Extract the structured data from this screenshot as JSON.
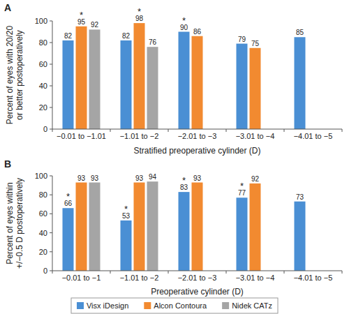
{
  "chart_data": [
    {
      "type": "bar",
      "title": "A",
      "x_label": "Stratified preoperative cylinder (D)",
      "y_label": "Percent of eyes with 20/20 or better postoperatively",
      "categories": [
        "−0.01 to −1.01",
        "−1.01 to −2",
        "−2.01 to −3",
        "−3.01 to −4",
        "−4.01 to −5"
      ],
      "series": [
        {
          "name": "Visx iDesign",
          "color": "#4a8fd4",
          "values": [
            82,
            82,
            90,
            79,
            85
          ]
        },
        {
          "name": "Alcon Contoura",
          "color": "#f28a30",
          "values": [
            95,
            98,
            86,
            75,
            null
          ]
        },
        {
          "name": "Nidek CATz",
          "color": "#a5a5a5",
          "values": [
            92,
            76,
            null,
            null,
            null
          ]
        }
      ],
      "annotations": [
        {
          "text": "*",
          "series": "Alcon Contoura",
          "category": "−0.01 to −1.01"
        },
        {
          "text": "*",
          "series": "Alcon Contoura",
          "category": "−1.01 to −2"
        },
        {
          "text": "*",
          "series": "Visx iDesign",
          "category": "−2.01 to −3"
        }
      ],
      "ylim": [
        0,
        100
      ],
      "yticks": [
        0,
        20,
        40,
        60,
        80,
        100
      ],
      "grid": false,
      "data_labels": true
    },
    {
      "type": "bar",
      "title": "B",
      "x_label": "Preoperative cylinder (D)",
      "y_label": "Percent of eyes within +/−0.5 D postoperatively",
      "categories": [
        "−0.01 to −1",
        "−1.01 to −2",
        "−2.01 to −3",
        "−3.01 to −4",
        "−4.01 to −5"
      ],
      "series": [
        {
          "name": "Visx iDesign",
          "color": "#4a8fd4",
          "values": [
            66,
            53,
            83,
            77,
            73
          ]
        },
        {
          "name": "Alcon Contoura",
          "color": "#f28a30",
          "values": [
            93,
            93,
            93,
            92,
            null
          ]
        },
        {
          "name": "Nidek CATz",
          "color": "#a5a5a5",
          "values": [
            93,
            94,
            null,
            null,
            null
          ]
        }
      ],
      "annotations": [
        {
          "text": "*",
          "series": "Visx iDesign",
          "category": "−0.01 to −1"
        },
        {
          "text": "*",
          "series": "Visx iDesign",
          "category": "−1.01 to −2"
        },
        {
          "text": "*",
          "series": "Visx iDesign",
          "category": "−2.01 to −3"
        },
        {
          "text": "*",
          "series": "Visx iDesign",
          "category": "−3.01 to −4"
        }
      ],
      "ylim": [
        0,
        100
      ],
      "yticks": [
        0,
        20,
        40,
        60,
        80,
        100
      ],
      "grid": false,
      "data_labels": true,
      "legend": "bottom"
    }
  ]
}
